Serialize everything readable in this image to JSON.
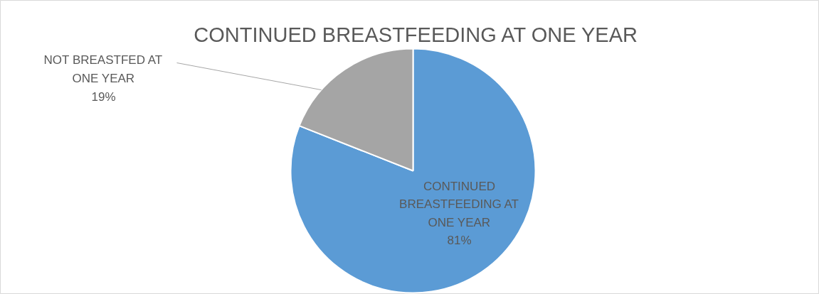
{
  "chart_data": {
    "type": "pie",
    "title": "CONTINUED BREASTFEEDING AT ONE YEAR",
    "categories": [
      "CONTINUED BREASTFEEDING AT ONE YEAR",
      "NOT BREASTFED AT ONE YEAR"
    ],
    "values": [
      81,
      19
    ],
    "colors": [
      "#5b9bd5",
      "#a5a5a5"
    ],
    "value_labels": [
      "81%",
      "19%"
    ]
  }
}
